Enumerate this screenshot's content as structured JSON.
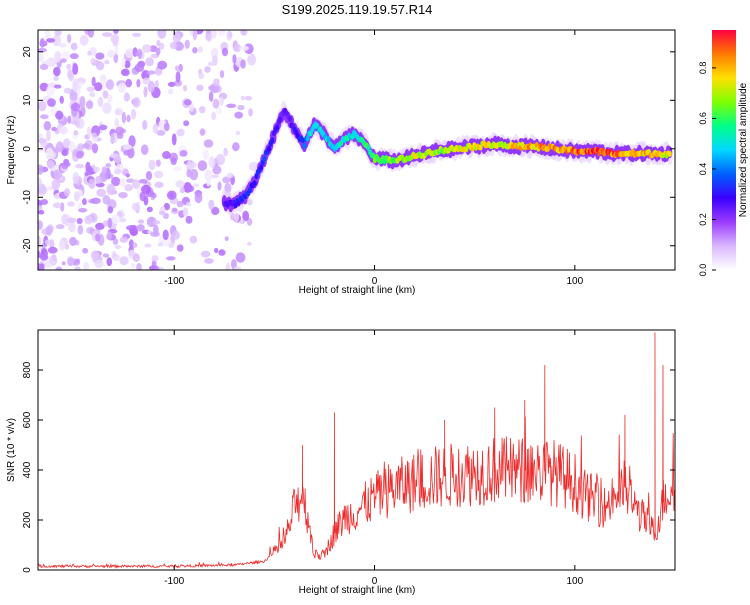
{
  "title": "S199.2025.119.19.57.R14",
  "colors": {
    "snr_line": "#ee2a2a",
    "axis": "#000000",
    "colormap": [
      "#ffffff",
      "#d9b8ff",
      "#9a3cff",
      "#3a00ff",
      "#0060ff",
      "#00d8ff",
      "#00ff88",
      "#7fff00",
      "#ffe000",
      "#ff7a00",
      "#ff0040"
    ]
  },
  "chart_data": [
    {
      "type": "heatmap",
      "title": "S199.2025.119.19.57.R14",
      "xlabel": "Height of straight line (km)",
      "ylabel": "Frequency (Hz)",
      "xlim": [
        -168,
        150
      ],
      "ylim": [
        -25,
        24.5
      ],
      "xticks": [
        -100,
        0,
        100
      ],
      "yticks": [
        -20,
        -10,
        0,
        10,
        20
      ],
      "colorbar": {
        "label": "Normalized spectral amplitude",
        "range": [
          0,
          0.95
        ],
        "ticks": [
          0.0,
          0.2,
          0.4,
          0.6,
          0.8
        ]
      },
      "ridge": {
        "x": [
          -75,
          -70,
          -65,
          -60,
          -55,
          -50,
          -45,
          -40,
          -35,
          -30,
          -25,
          -20,
          -15,
          -10,
          -5,
          0,
          10,
          20,
          30,
          40,
          50,
          60,
          70,
          80,
          90,
          100,
          110,
          120,
          130,
          140,
          148
        ],
        "freq": [
          -11,
          -11.5,
          -10,
          -7,
          -2,
          3,
          8,
          4,
          1,
          5,
          3,
          0,
          2,
          3,
          1,
          -2,
          -2.5,
          -1.5,
          -0.5,
          0,
          0.5,
          1,
          0.5,
          0.5,
          0,
          -0.5,
          -0.5,
          -1,
          -1,
          -1,
          -1
        ],
        "amplitude": [
          0.25,
          0.3,
          0.35,
          0.3,
          0.35,
          0.3,
          0.25,
          0.3,
          0.4,
          0.55,
          0.5,
          0.5,
          0.55,
          0.5,
          0.6,
          0.65,
          0.7,
          0.75,
          0.7,
          0.75,
          0.8,
          0.75,
          0.8,
          0.85,
          0.85,
          0.9,
          0.95,
          0.9,
          0.85,
          0.8,
          0.75
        ]
      },
      "noise_region_x": [
        -168,
        -60
      ]
    },
    {
      "type": "line",
      "xlabel": "Height of straight line (km)",
      "ylabel": "SNR (10 * v/v)",
      "xlim": [
        -168,
        150
      ],
      "ylim": [
        0,
        960
      ],
      "xticks": [
        -100,
        0,
        100
      ],
      "yticks": [
        0,
        200,
        400,
        600,
        800
      ],
      "envelope": {
        "x": [
          -168,
          -100,
          -70,
          -55,
          -45,
          -40,
          -36,
          -33,
          -30,
          -25,
          -20,
          -15,
          -10,
          -5,
          0,
          5,
          10,
          20,
          30,
          40,
          50,
          60,
          70,
          80,
          90,
          100,
          105,
          110,
          115,
          120,
          125,
          130,
          135,
          140,
          145,
          150
        ],
        "y": [
          15,
          15,
          20,
          35,
          110,
          250,
          310,
          200,
          60,
          60,
          150,
          210,
          230,
          260,
          290,
          310,
          330,
          350,
          370,
          380,
          390,
          400,
          395,
          400,
          390,
          350,
          300,
          280,
          250,
          300,
          330,
          250,
          200,
          150,
          300,
          350
        ]
      },
      "spikes": [
        {
          "x": -20,
          "y": 630
        },
        {
          "x": -36,
          "y": 500
        },
        {
          "x": 85,
          "y": 820
        },
        {
          "x": 140,
          "y": 950
        },
        {
          "x": 144,
          "y": 820
        },
        {
          "x": 75,
          "y": 680
        },
        {
          "x": 60,
          "y": 650
        },
        {
          "x": 125,
          "y": 620
        },
        {
          "x": 35,
          "y": 600
        }
      ]
    }
  ]
}
